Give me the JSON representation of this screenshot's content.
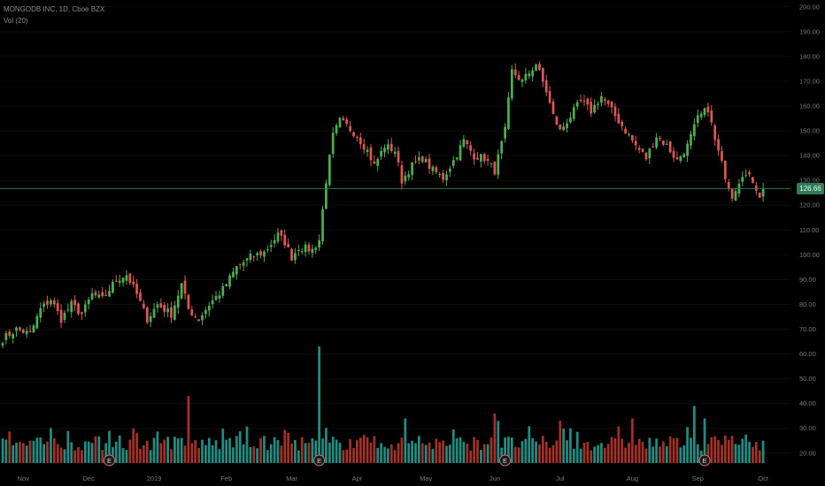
{
  "header": {
    "symbol": "MONGODB INC, 1D, Cboe BZX",
    "volume_study": "Vol (20)"
  },
  "last_price_label": "126.66",
  "colors": {
    "up": "#4caf50",
    "down": "#e05555",
    "vol_up": "#26a69a",
    "vol_down": "#c0392b",
    "price_line": "#2e7d57",
    "background": "#000000"
  },
  "chart_data": {
    "type": "candlestick",
    "yticks": [
      "200.00",
      "190.00",
      "180.00",
      "170.00",
      "160.00",
      "150.00",
      "140.00",
      "130.00",
      "120.00",
      "110.00",
      "100.00",
      "90.00",
      "80.00",
      "70.00",
      "60.00",
      "50.00",
      "40.00",
      "30.00",
      "20.00"
    ],
    "ytick_values": [
      200,
      190,
      180,
      170,
      160,
      150,
      140,
      130,
      120,
      110,
      100,
      90,
      80,
      70,
      60,
      50,
      40,
      30,
      20
    ],
    "ylim": [
      16,
      201
    ],
    "x_labels": [
      "Nov",
      "Dec",
      "2019",
      "Feb",
      "Mar",
      "Apr",
      "May",
      "Jun",
      "Jul",
      "Aug",
      "Sep",
      "Oct"
    ],
    "x_label_index": [
      6,
      25,
      44,
      65,
      84,
      103,
      123,
      143,
      162,
      183,
      202,
      221
    ],
    "x_count": 222,
    "last_price": 126.66,
    "earnings_markers": [
      {
        "index": 31,
        "label": "E"
      },
      {
        "index": 92,
        "label": "E"
      },
      {
        "index": 146,
        "label": "E"
      },
      {
        "index": 204,
        "label": "E"
      }
    ],
    "anchors": [
      [
        0,
        66
      ],
      [
        4,
        70
      ],
      [
        8,
        68
      ],
      [
        11,
        78
      ],
      [
        14,
        82
      ],
      [
        17,
        74
      ],
      [
        20,
        80
      ],
      [
        23,
        76
      ],
      [
        26,
        84
      ],
      [
        29,
        82
      ],
      [
        33,
        90
      ],
      [
        36,
        92
      ],
      [
        39,
        84
      ],
      [
        42,
        74
      ],
      [
        45,
        80
      ],
      [
        49,
        76
      ],
      [
        52,
        88
      ],
      [
        54,
        78
      ],
      [
        57,
        74
      ],
      [
        60,
        80
      ],
      [
        64,
        86
      ],
      [
        68,
        95
      ],
      [
        72,
        99
      ],
      [
        76,
        101
      ],
      [
        80,
        108
      ],
      [
        82,
        105
      ],
      [
        84,
        99
      ],
      [
        86,
        103
      ],
      [
        90,
        102
      ],
      [
        92,
        106
      ],
      [
        94,
        130
      ],
      [
        96,
        148
      ],
      [
        98,
        154
      ],
      [
        100,
        152
      ],
      [
        103,
        148
      ],
      [
        106,
        142
      ],
      [
        108,
        136
      ],
      [
        111,
        144
      ],
      [
        114,
        142
      ],
      [
        116,
        130
      ],
      [
        119,
        136
      ],
      [
        122,
        139
      ],
      [
        125,
        134
      ],
      [
        128,
        131
      ],
      [
        131,
        138
      ],
      [
        134,
        146
      ],
      [
        137,
        140
      ],
      [
        140,
        139
      ],
      [
        143,
        134
      ],
      [
        146,
        150
      ],
      [
        148,
        174
      ],
      [
        151,
        170
      ],
      [
        155,
        177
      ],
      [
        158,
        166
      ],
      [
        160,
        156
      ],
      [
        162,
        150
      ],
      [
        165,
        156
      ],
      [
        168,
        162
      ],
      [
        171,
        158
      ],
      [
        174,
        164
      ],
      [
        177,
        158
      ],
      [
        181,
        150
      ],
      [
        184,
        144
      ],
      [
        187,
        139
      ],
      [
        190,
        148
      ],
      [
        193,
        144
      ],
      [
        196,
        138
      ],
      [
        199,
        144
      ],
      [
        202,
        155
      ],
      [
        205,
        159
      ],
      [
        207,
        146
      ],
      [
        210,
        132
      ],
      [
        212,
        124
      ],
      [
        215,
        133
      ],
      [
        218,
        130
      ],
      [
        220,
        124
      ],
      [
        221,
        126.66
      ]
    ],
    "volume_note": "Vol (20)"
  }
}
